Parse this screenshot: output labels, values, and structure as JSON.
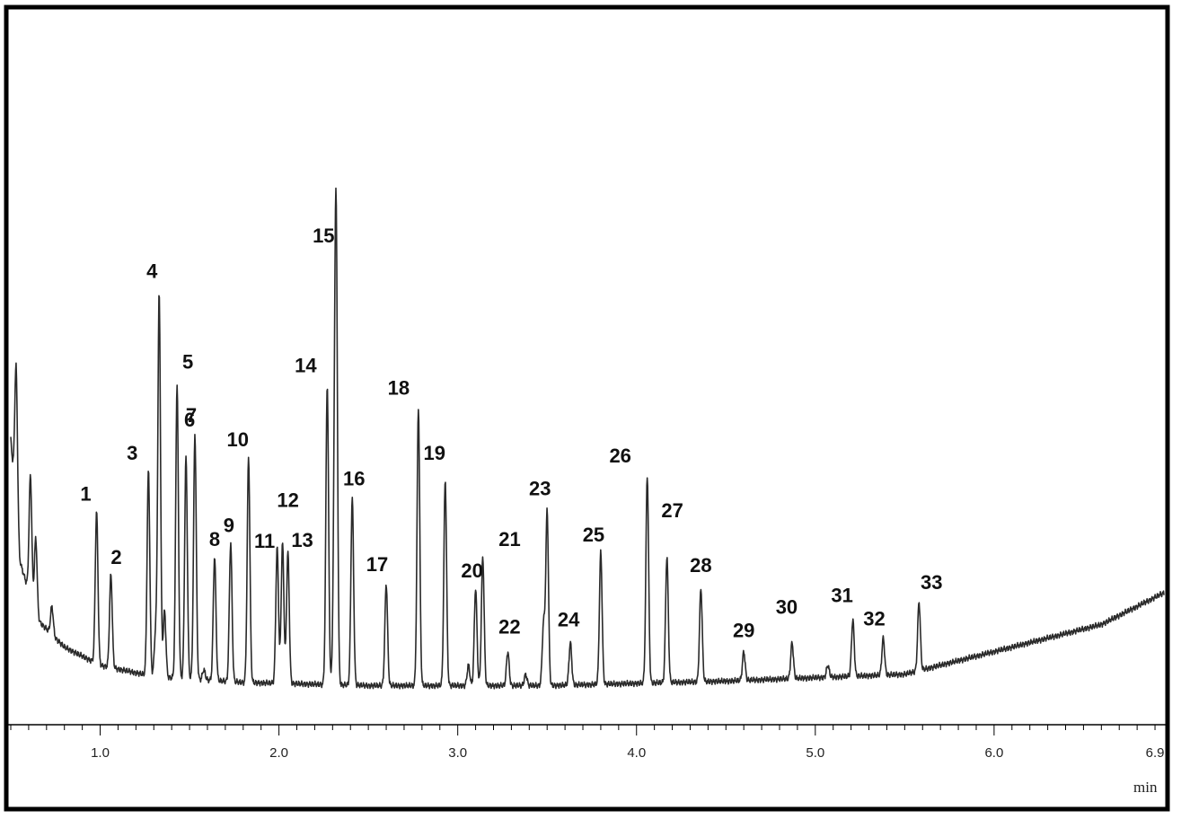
{
  "chart_data": {
    "type": "line",
    "title": "",
    "xlabel": "min",
    "ylabel": "",
    "xlim": [
      0.5,
      6.95
    ],
    "ylim": [
      0,
      1
    ],
    "grid": false,
    "x_ticks": [
      {
        "value": 1.0,
        "label": "1.0"
      },
      {
        "value": 2.0,
        "label": "2.0"
      },
      {
        "value": 3.0,
        "label": "3.0"
      },
      {
        "value": 4.0,
        "label": "4.0"
      },
      {
        "value": 5.0,
        "label": "5.0"
      },
      {
        "value": 6.0,
        "label": "6.0"
      },
      {
        "value": 6.9,
        "label": "6.9"
      }
    ],
    "peaks": [
      {
        "label": "1",
        "rt": 0.98,
        "height": 0.39
      },
      {
        "label": "2",
        "rt": 1.06,
        "height": 0.25
      },
      {
        "label": "3",
        "rt": 1.27,
        "height": 0.48
      },
      {
        "label": "4",
        "rt": 1.33,
        "height": 0.87
      },
      {
        "label": "5",
        "rt": 1.43,
        "height": 0.67
      },
      {
        "label": "6",
        "rt": 1.48,
        "height": 0.51
      },
      {
        "label": "7",
        "rt": 1.53,
        "height": 0.56
      },
      {
        "label": "8",
        "rt": 1.64,
        "height": 0.29
      },
      {
        "label": "9",
        "rt": 1.73,
        "height": 0.32
      },
      {
        "label": "10",
        "rt": 1.83,
        "height": 0.51
      },
      {
        "label": "11",
        "rt": 1.99,
        "height": 0.31
      },
      {
        "label": "12",
        "rt": 2.02,
        "height": 0.32
      },
      {
        "label": "13",
        "rt": 2.05,
        "height": 0.3
      },
      {
        "label": "14",
        "rt": 2.27,
        "height": 0.67
      },
      {
        "label": "15",
        "rt": 2.32,
        "height": 0.96
      },
      {
        "label": "16",
        "rt": 2.41,
        "height": 0.42
      },
      {
        "label": "17",
        "rt": 2.6,
        "height": 0.23
      },
      {
        "label": "18",
        "rt": 2.78,
        "height": 0.62
      },
      {
        "label": "19",
        "rt": 2.93,
        "height": 0.46
      },
      {
        "label": "20",
        "rt": 3.1,
        "height": 0.22
      },
      {
        "label": "21",
        "rt": 3.14,
        "height": 0.29
      },
      {
        "label": "22",
        "rt": 3.28,
        "height": 0.08
      },
      {
        "label": "23",
        "rt": 3.5,
        "height": 0.39
      },
      {
        "label": "24",
        "rt": 3.63,
        "height": 0.1
      },
      {
        "label": "25",
        "rt": 3.8,
        "height": 0.3
      },
      {
        "label": "26",
        "rt": 4.06,
        "height": 0.47
      },
      {
        "label": "27",
        "rt": 4.17,
        "height": 0.29
      },
      {
        "label": "28",
        "rt": 4.36,
        "height": 0.22
      },
      {
        "label": "29",
        "rt": 4.6,
        "height": 0.08
      },
      {
        "label": "30",
        "rt": 4.87,
        "height": 0.1
      },
      {
        "label": "31",
        "rt": 5.21,
        "height": 0.15
      },
      {
        "label": "32",
        "rt": 5.38,
        "height": 0.11
      },
      {
        "label": "33",
        "rt": 5.58,
        "height": 0.19
      }
    ],
    "minor_peaks": [
      {
        "rt": 0.53,
        "height": 0.71
      },
      {
        "rt": 0.61,
        "height": 0.47
      },
      {
        "rt": 0.64,
        "height": 0.33
      },
      {
        "rt": 0.73,
        "height": 0.18
      },
      {
        "rt": 1.12,
        "height": 0.04
      },
      {
        "rt": 1.36,
        "height": 0.17
      },
      {
        "rt": 1.31,
        "height": 0.12
      },
      {
        "rt": 1.58,
        "height": 0.04
      },
      {
        "rt": 2.31,
        "height": 0.32
      },
      {
        "rt": 3.06,
        "height": 0.05
      },
      {
        "rt": 3.38,
        "height": 0.03
      },
      {
        "rt": 3.48,
        "height": 0.14
      },
      {
        "rt": 5.07,
        "height": 0.05
      }
    ],
    "baseline": [
      {
        "rt": 0.5,
        "level": 0.55
      },
      {
        "rt": 0.55,
        "level": 0.28
      },
      {
        "rt": 0.65,
        "level": 0.15
      },
      {
        "rt": 0.8,
        "level": 0.09
      },
      {
        "rt": 1.0,
        "level": 0.05
      },
      {
        "rt": 1.3,
        "level": 0.025
      },
      {
        "rt": 1.8,
        "level": 0.012
      },
      {
        "rt": 2.5,
        "level": 0.005
      },
      {
        "rt": 3.5,
        "level": 0.005
      },
      {
        "rt": 4.5,
        "level": 0.015
      },
      {
        "rt": 5.5,
        "level": 0.03
      },
      {
        "rt": 5.9,
        "level": 0.07
      },
      {
        "rt": 6.3,
        "level": 0.11
      },
      {
        "rt": 6.6,
        "level": 0.14
      },
      {
        "rt": 6.95,
        "level": 0.21
      }
    ]
  }
}
